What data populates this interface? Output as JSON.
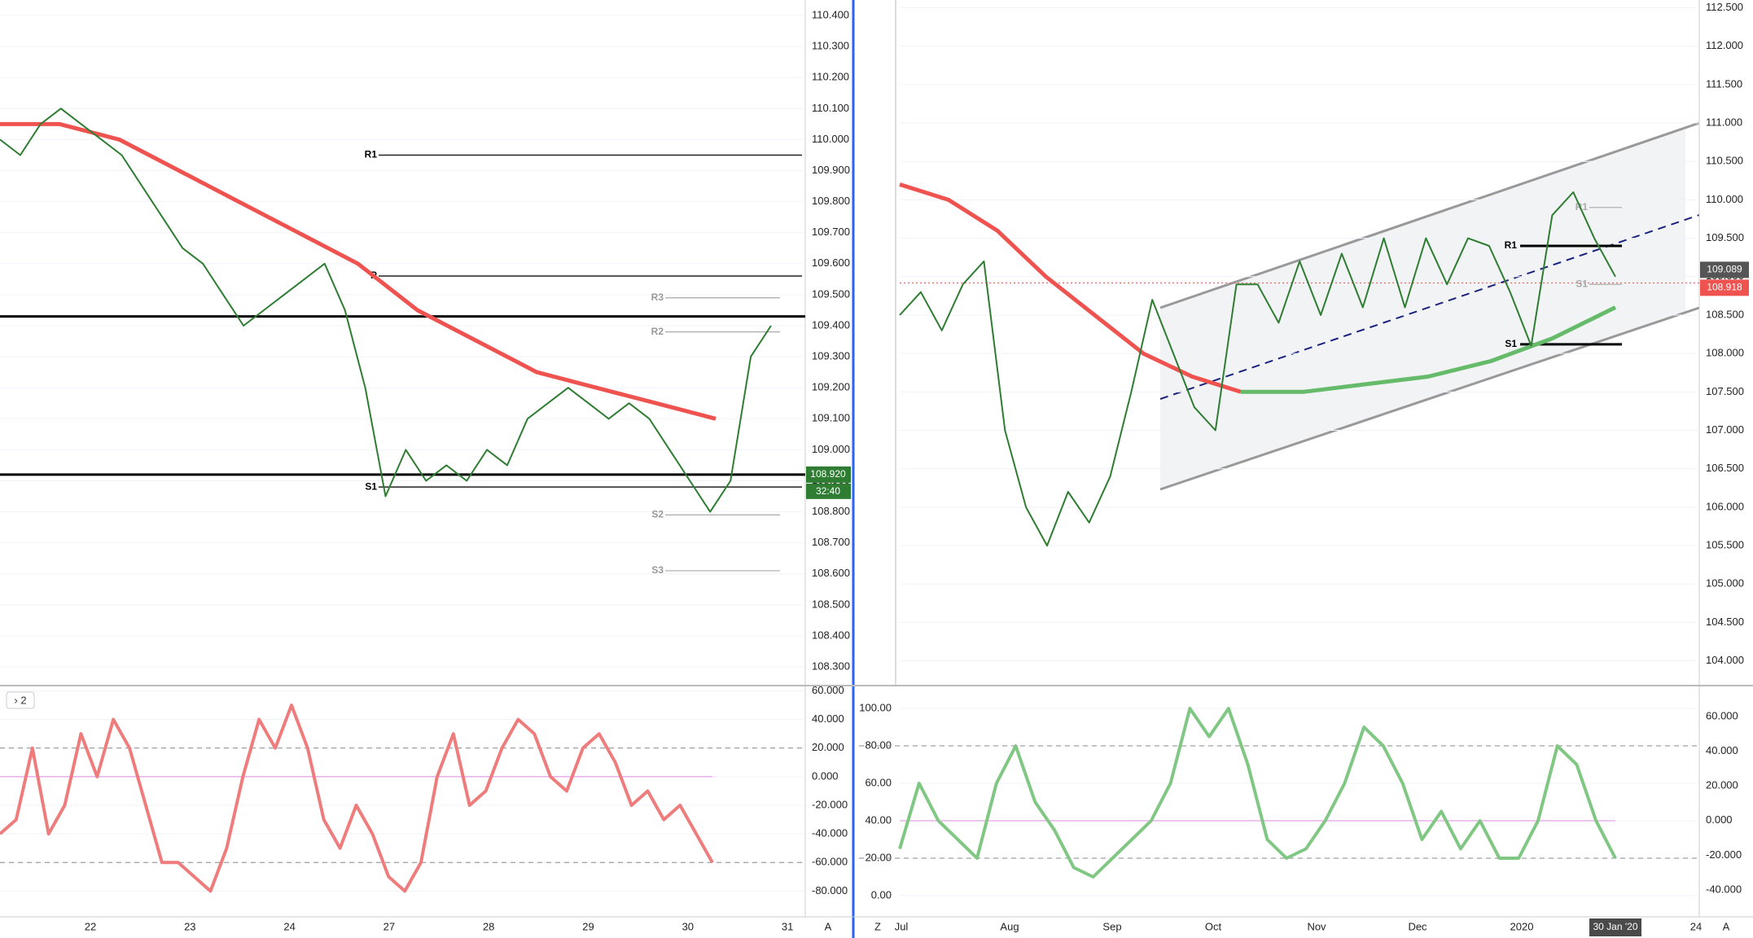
{
  "left": {
    "yaxis": {
      "lim": [
        108.245,
        110.45
      ],
      "ticks": [
        {
          "value": 110.4,
          "label": "110.400"
        },
        {
          "value": 110.3,
          "label": "110.300"
        },
        {
          "value": 110.2,
          "label": "110.200"
        },
        {
          "value": 110.1,
          "label": "110.100"
        },
        {
          "value": 110.0,
          "label": "110.000"
        },
        {
          "value": 109.9,
          "label": "109.900"
        },
        {
          "value": 109.8,
          "label": "109.800"
        },
        {
          "value": 109.7,
          "label": "109.700"
        },
        {
          "value": 109.6,
          "label": "109.600"
        },
        {
          "value": 109.5,
          "label": "109.500"
        },
        {
          "value": 109.4,
          "label": "109.400"
        },
        {
          "value": 109.3,
          "label": "109.300"
        },
        {
          "value": 109.2,
          "label": "109.200"
        },
        {
          "value": 109.1,
          "label": "109.100"
        },
        {
          "value": 109.0,
          "label": "109.000"
        },
        {
          "value": 108.9,
          "label": "108.900"
        },
        {
          "value": 108.8,
          "label": "108.800"
        },
        {
          "value": 108.7,
          "label": "108.700"
        },
        {
          "value": 108.6,
          "label": "108.600"
        },
        {
          "value": 108.5,
          "label": "108.500"
        },
        {
          "value": 108.4,
          "label": "108.400"
        },
        {
          "value": 108.3,
          "label": "108.300"
        }
      ]
    },
    "times": [
      "22",
      "23",
      "24",
      "27",
      "28",
      "29",
      "30",
      "31"
    ],
    "corner": "A",
    "close": [
      110.0,
      109.95,
      110.05,
      110.1,
      110.05,
      110.0,
      109.95,
      109.85,
      109.75,
      109.65,
      109.6,
      109.5,
      109.4,
      109.45,
      109.5,
      109.55,
      109.6,
      109.45,
      109.2,
      108.85,
      109.0,
      108.9,
      108.95,
      108.9,
      109.0,
      108.95,
      109.1,
      109.15,
      109.2,
      109.15,
      109.1,
      109.15,
      109.1,
      109.0,
      108.9,
      108.8,
      108.9,
      109.3,
      109.4
    ],
    "ma": [
      110.05,
      110.05,
      110.0,
      109.9,
      109.8,
      109.7,
      109.6,
      109.45,
      109.35,
      109.25,
      109.2,
      109.15,
      109.1
    ],
    "pivots": [
      {
        "label": "R1",
        "value": 109.95
      },
      {
        "label": "P",
        "value": 109.56
      },
      {
        "label": "S1",
        "value": 108.88
      },
      {
        "label": "R3",
        "value": 109.49
      },
      {
        "label": "R2",
        "value": 109.38
      },
      {
        "label": "S2",
        "value": 108.79
      },
      {
        "label": "S3",
        "value": 108.61
      }
    ],
    "levels": [
      109.43,
      108.92
    ],
    "price_badge": {
      "label": "108.920",
      "value": 108.92
    },
    "countdown": "32:40",
    "osc": {
      "button": "› 2",
      "lim": [
        -98,
        62
      ],
      "ticks": [
        {
          "value": 60,
          "label": "60.000"
        },
        {
          "value": 40,
          "label": "40.000"
        },
        {
          "value": 20,
          "label": "20.000"
        },
        {
          "value": 0,
          "label": "0.000"
        },
        {
          "value": -20,
          "label": "-20.000"
        },
        {
          "value": -40,
          "label": "-40.000"
        },
        {
          "value": -60,
          "label": "-60.000"
        },
        {
          "value": -80,
          "label": "-80.000"
        }
      ],
      "values": [
        -40,
        -30,
        20,
        -40,
        -20,
        30,
        0,
        40,
        20,
        -20,
        -60,
        -60,
        -70,
        -80,
        -50,
        0,
        40,
        20,
        50,
        20,
        -30,
        -50,
        -20,
        -40,
        -70,
        -80,
        -60,
        0,
        30,
        -20,
        -10,
        20,
        40,
        30,
        0,
        -10,
        20,
        30,
        10,
        -20,
        -10,
        -30,
        -20,
        -40,
        -60
      ]
    }
  },
  "right": {
    "yaxis": {
      "lim": [
        103.7,
        112.6
      ],
      "ticks": [
        {
          "value": 112.5,
          "label": "112.500"
        },
        {
          "value": 112.0,
          "label": "112.000"
        },
        {
          "value": 111.5,
          "label": "111.500"
        },
        {
          "value": 111.0,
          "label": "111.000"
        },
        {
          "value": 110.5,
          "label": "110.500"
        },
        {
          "value": 110.0,
          "label": "110.000"
        },
        {
          "value": 109.5,
          "label": "109.500"
        },
        {
          "value": 109.0,
          "label": "109.000"
        },
        {
          "value": 108.5,
          "label": "108.500"
        },
        {
          "value": 108.0,
          "label": "108.000"
        },
        {
          "value": 107.5,
          "label": "107.500"
        },
        {
          "value": 107.0,
          "label": "107.000"
        },
        {
          "value": 106.5,
          "label": "106.500"
        },
        {
          "value": 106.0,
          "label": "106.000"
        },
        {
          "value": 105.5,
          "label": "105.500"
        },
        {
          "value": 105.0,
          "label": "105.000"
        },
        {
          "value": 104.5,
          "label": "104.500"
        },
        {
          "value": 104.0,
          "label": "104.000"
        }
      ]
    },
    "times": [
      "Jul",
      "Aug",
      "Sep",
      "Oct",
      "Nov",
      "Dec",
      "2020",
      "30 Jan '20",
      "24"
    ],
    "corner_left": "Z",
    "corner": "A",
    "close": [
      108.5,
      108.8,
      108.3,
      108.9,
      109.2,
      107.0,
      106.0,
      105.5,
      106.2,
      105.8,
      106.4,
      107.5,
      108.7,
      108.0,
      107.3,
      107.0,
      108.9,
      108.9,
      108.4,
      109.2,
      108.5,
      109.3,
      108.6,
      109.5,
      108.6,
      109.5,
      108.9,
      109.5,
      109.4,
      108.8,
      108.1,
      109.8,
      110.1,
      109.5,
      109.0
    ],
    "ma_red": [
      110.2,
      110.0,
      109.6,
      109.0,
      108.5,
      108.0,
      107.7,
      107.5
    ],
    "ma_green": [
      107.5,
      107.5,
      107.6,
      107.7,
      107.9,
      108.2,
      108.6
    ],
    "pivots": [
      {
        "label": "R1",
        "value": 109.4
      },
      {
        "label": "S1",
        "value": 108.12
      },
      {
        "label": "R1",
        "value": 109.9
      },
      {
        "label": "S1",
        "value": 108.9
      }
    ],
    "price_badges": [
      {
        "label": "109.089",
        "value": 109.089
      },
      {
        "label": "108.918",
        "value": 108.918
      }
    ],
    "osc": {
      "lim": [
        -11.3,
        110.9
      ],
      "ticks": [
        {
          "value": 100,
          "label": "100.00"
        },
        {
          "value": 80,
          "label": "80.00"
        },
        {
          "value": 60,
          "label": "60.00"
        },
        {
          "value": 40,
          "label": "40.00"
        },
        {
          "value": 20,
          "label": "20.00"
        },
        {
          "value": 0,
          "label": "0.00"
        }
      ],
      "lim2": [
        -55.5,
        76.4
      ],
      "ticks2": [
        {
          "value": 60,
          "label": "60.000"
        },
        {
          "value": 40,
          "label": "40.000"
        },
        {
          "value": 20,
          "label": "20.000"
        },
        {
          "value": 0,
          "label": "0.000"
        },
        {
          "value": -20,
          "label": "-20.000"
        },
        {
          "value": -40,
          "label": "-40.000"
        }
      ],
      "values": [
        25,
        60,
        40,
        30,
        20,
        60,
        80,
        50,
        35,
        15,
        10,
        20,
        30,
        40,
        60,
        100,
        85,
        100,
        70,
        30,
        20,
        25,
        40,
        60,
        90,
        80,
        60,
        30,
        45,
        25,
        40,
        20,
        20,
        40,
        80,
        70,
        40,
        20
      ]
    }
  }
}
